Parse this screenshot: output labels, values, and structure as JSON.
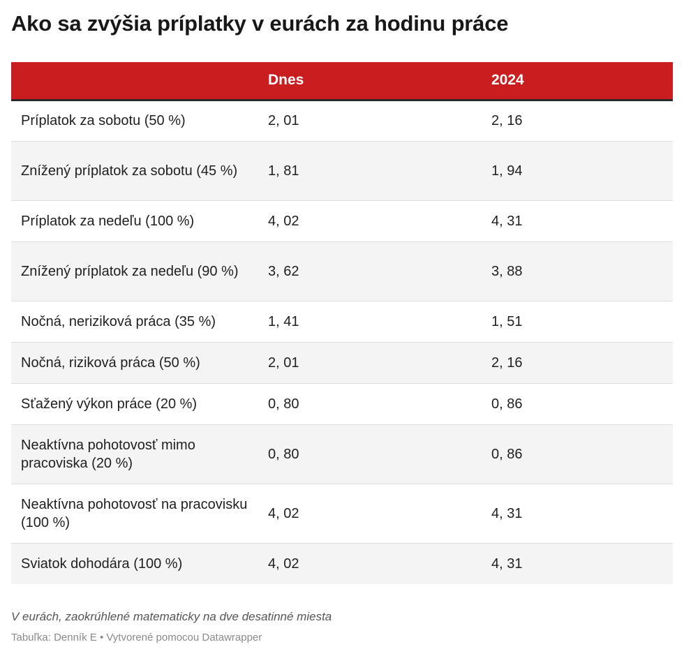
{
  "chart_data": {
    "type": "table",
    "title": "Ako sa zvýšia príplatky v eurách za hodinu práce",
    "columns": [
      "",
      "Dnes",
      "2024"
    ],
    "rows": [
      {
        "label": "Príplatok za sobotu (50 %)",
        "dnes": "2, 01",
        "y2024": "2, 16"
      },
      {
        "label": "Znížený príplatok za sobotu (45 %)",
        "dnes": "1, 81",
        "y2024": "1, 94"
      },
      {
        "label": "Príplatok za nedeľu (100 %)",
        "dnes": "4, 02",
        "y2024": "4, 31"
      },
      {
        "label": "Znížený príplatok za nedeľu (90 %)",
        "dnes": "3, 62",
        "y2024": "3, 88"
      },
      {
        "label": "Nočná, neriziková práca (35 %)",
        "dnes": "1, 41",
        "y2024": "1, 51"
      },
      {
        "label": "Nočná, riziková práca (50 %)",
        "dnes": "2, 01",
        "y2024": "2, 16"
      },
      {
        "label": "Sťažený výkon práce (20 %)",
        "dnes": "0, 80",
        "y2024": "0, 86"
      },
      {
        "label": "Neaktívna pohotovosť mimo pracoviska (20 %)",
        "dnes": "0, 80",
        "y2024": "0, 86"
      },
      {
        "label": "Neaktívna pohotovosť na pracovisku (100 %)",
        "dnes": "4, 02",
        "y2024": "4, 31"
      },
      {
        "label": "Sviatok dohodára (100 %)",
        "dnes": "4, 02",
        "y2024": "4, 31"
      }
    ],
    "note": "V eurách, zaokrúhlené matematicky na dve desatinné miesta",
    "source": "Tabuľka: Denník E • Vytvorené pomocou Datawrapper"
  },
  "colors": {
    "header_bg": "#c91d1f",
    "header_text": "#ffffff",
    "stripe": "#f4f4f4"
  }
}
